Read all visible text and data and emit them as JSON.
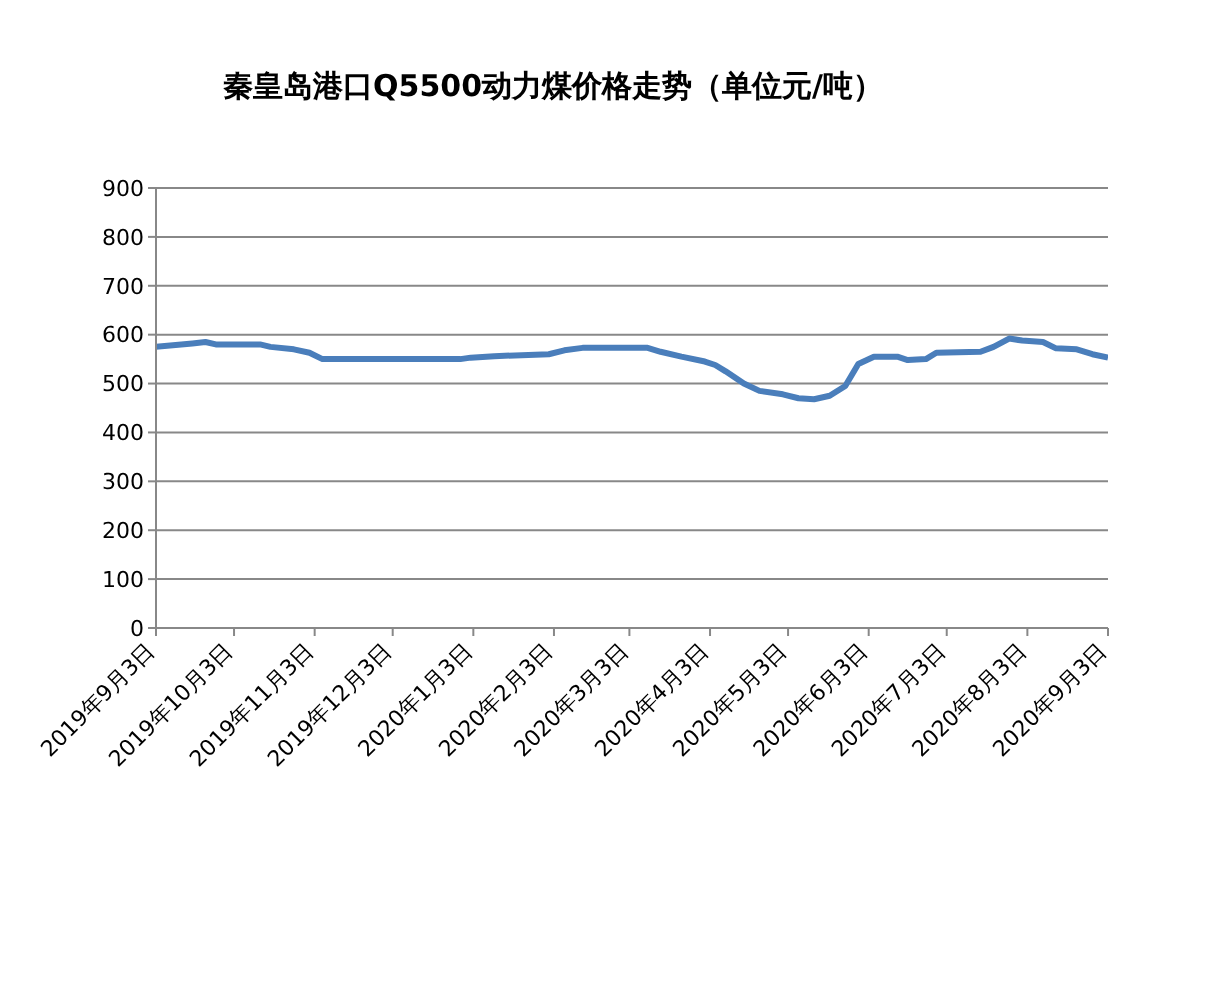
{
  "chart_data": {
    "type": "line",
    "title": "秦皇岛港口Q5500动力煤价格走势（单位元/吨）",
    "x": [
      "2019-09-03",
      "2019-09-17",
      "2019-09-22",
      "2019-09-26",
      "2019-10-13",
      "2019-10-17",
      "2019-10-26",
      "2019-11-01",
      "2019-11-06",
      "2019-12-29",
      "2020-01-02",
      "2020-01-11",
      "2020-02-01",
      "2020-02-07",
      "2020-02-14",
      "2020-03-10",
      "2020-03-15",
      "2020-03-23",
      "2020-04-01",
      "2020-04-05",
      "2020-04-09",
      "2020-04-16",
      "2020-04-22",
      "2020-05-01",
      "2020-05-07",
      "2020-05-13",
      "2020-05-19",
      "2020-05-25",
      "2020-05-30",
      "2020-06-05",
      "2020-06-14",
      "2020-06-18",
      "2020-06-25",
      "2020-06-29",
      "2020-07-16",
      "2020-07-21",
      "2020-07-27",
      "2020-08-01",
      "2020-08-09",
      "2020-08-14",
      "2020-08-22",
      "2020-08-28",
      "2020-09-03"
    ],
    "series": [
      {
        "color": "#4a7ebb",
        "values": [
          575,
          582,
          585,
          580,
          580,
          575,
          570,
          563,
          550,
          550,
          553,
          556,
          560,
          568,
          573,
          573,
          565,
          555,
          545,
          538,
          525,
          500,
          485,
          478,
          470,
          468,
          475,
          495,
          540,
          555,
          555,
          548,
          550,
          563,
          565,
          575,
          592,
          588,
          585,
          572,
          570,
          560,
          553
        ]
      }
    ],
    "xlim": [
      "2019-09-03",
      "2020-09-03"
    ],
    "xticks": [
      {
        "value": "2019-09-03",
        "label": "2019年9月3日"
      },
      {
        "value": "2019-10-03",
        "label": "2019年10月3日"
      },
      {
        "value": "2019-11-03",
        "label": "2019年11月3日"
      },
      {
        "value": "2019-12-03",
        "label": "2019年12月3日"
      },
      {
        "value": "2020-01-03",
        "label": "2020年1月3日"
      },
      {
        "value": "2020-02-03",
        "label": "2020年2月3日"
      },
      {
        "value": "2020-03-03",
        "label": "2020年3月3日"
      },
      {
        "value": "2020-04-03",
        "label": "2020年4月3日"
      },
      {
        "value": "2020-05-03",
        "label": "2020年5月3日"
      },
      {
        "value": "2020-06-03",
        "label": "2020年6月3日"
      },
      {
        "value": "2020-07-03",
        "label": "2020年7月3日"
      },
      {
        "value": "2020-08-03",
        "label": "2020年8月3日"
      },
      {
        "value": "2020-09-03",
        "label": "2020年9月3日"
      }
    ],
    "ylim": [
      0,
      900
    ],
    "yticks": [
      0,
      100,
      200,
      300,
      400,
      500,
      600,
      700,
      800,
      900
    ],
    "grid": "y",
    "marker": "none",
    "line_style": "solid"
  }
}
